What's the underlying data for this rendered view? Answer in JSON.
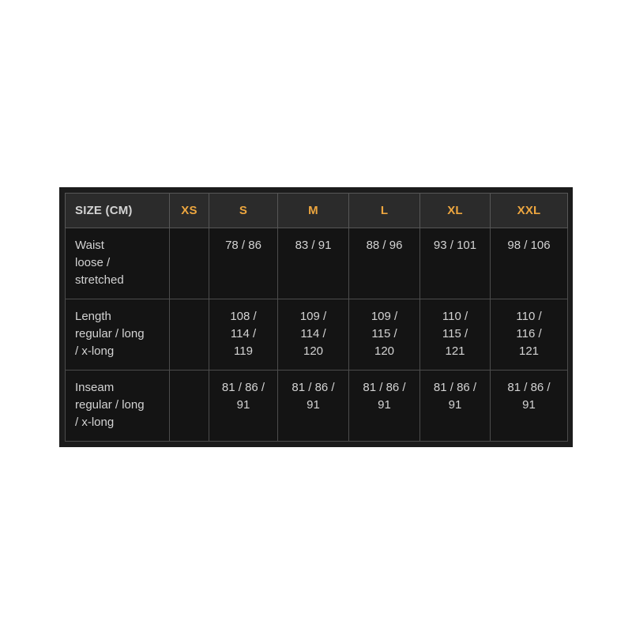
{
  "page": {
    "background_color": "#ffffff"
  },
  "colors": {
    "frame": "#1c1c1c",
    "header_bg": "#2b2b2b",
    "body_bg": "#141414",
    "grid_line": "#4c4c4c",
    "header_label_text": "#d3d3d3",
    "size_accent_text": "#eda63f",
    "body_text": "#d3d3d3"
  },
  "table": {
    "header": {
      "label": "SIZE (CM)",
      "sizes": [
        "XS",
        "S",
        "M",
        "L",
        "XL",
        "XXL"
      ]
    },
    "rows": [
      {
        "label": "Waist\nloose /\nstretched",
        "values": [
          "",
          "78 / 86",
          "83 / 91",
          "88 / 96",
          "93 / 101",
          "98 / 106"
        ]
      },
      {
        "label": "Length\nregular / long\n/ x-long",
        "values": [
          "",
          "108 /\n114 /\n119",
          "109 /\n114 /\n120",
          "109 /\n115 /\n120",
          "110 /\n115 /\n121",
          "110 /\n116 /\n121"
        ]
      },
      {
        "label": "Inseam\nregular / long\n/ x-long",
        "values": [
          "",
          "81 / 86 /\n91",
          "81 / 86 /\n91",
          "81 / 86 /\n91",
          "81 / 86 /\n91",
          "81 / 86 /\n91"
        ]
      }
    ]
  },
  "chart_data": {
    "type": "table",
    "title": "SIZE (CM)",
    "columns": [
      "SIZE (CM)",
      "XS",
      "S",
      "M",
      "L",
      "XL",
      "XXL"
    ],
    "rows": [
      [
        "Waist loose / stretched",
        "",
        "78 / 86",
        "83 / 91",
        "88 / 96",
        "93 / 101",
        "98 / 106"
      ],
      [
        "Length regular / long / x-long",
        "",
        "108 / 114 / 119",
        "109 / 114 / 120",
        "109 / 115 / 120",
        "110 / 115 / 121",
        "110 / 116 / 121"
      ],
      [
        "Inseam regular / long / x-long",
        "",
        "81 / 86 / 91",
        "81 / 86 / 91",
        "81 / 86 / 91",
        "81 / 86 / 91",
        "81 / 86 / 91"
      ]
    ]
  }
}
